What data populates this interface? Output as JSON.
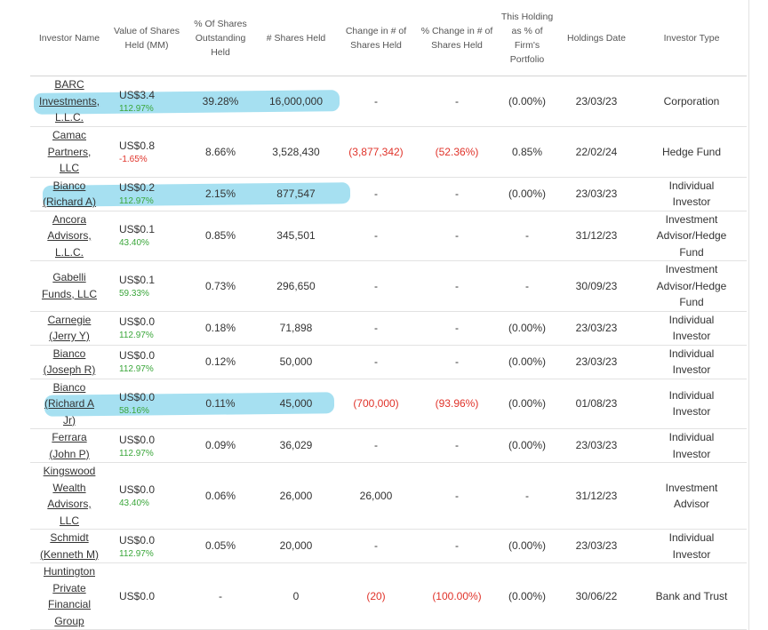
{
  "table": {
    "headers": [
      "Investor Name",
      "Value of Shares Held (MM)",
      "% Of Shares Outstanding Held",
      "# Shares Held",
      "Change in # of Shares Held",
      "% Change in # of Shares Held",
      "This Holding as % of Firm's Portfolio",
      "Holdings Date",
      "Investor Type"
    ],
    "rows": [
      {
        "name": "BARC Investments, L.L.C.",
        "value": "US$3.4",
        "value_change": "112.97%",
        "value_change_dir": "pos",
        "pct_outstanding": "39.28%",
        "shares": "16,000,000",
        "change_shares": "-",
        "change_shares_neg": false,
        "pct_change": "-",
        "pct_change_neg": false,
        "portfolio": "(0.00%)",
        "date": "23/03/23",
        "type": "Corporation",
        "highlighted": true
      },
      {
        "name": "Camac Partners, LLC",
        "value": "US$0.8",
        "value_change": "-1.65%",
        "value_change_dir": "neg",
        "pct_outstanding": "8.66%",
        "shares": "3,528,430",
        "change_shares": "(3,877,342)",
        "change_shares_neg": true,
        "pct_change": "(52.36%)",
        "pct_change_neg": true,
        "portfolio": "0.85%",
        "date": "22/02/24",
        "type": "Hedge Fund",
        "highlighted": false
      },
      {
        "name": "Bianco (Richard A)",
        "value": "US$0.2",
        "value_change": "112.97%",
        "value_change_dir": "pos",
        "pct_outstanding": "2.15%",
        "shares": "877,547",
        "change_shares": "-",
        "change_shares_neg": false,
        "pct_change": "-",
        "pct_change_neg": false,
        "portfolio": "(0.00%)",
        "date": "23/03/23",
        "type": "Individual Investor",
        "highlighted": true
      },
      {
        "name": "Ancora Advisors, L.L.C.",
        "value": "US$0.1",
        "value_change": "43.40%",
        "value_change_dir": "pos",
        "pct_outstanding": "0.85%",
        "shares": "345,501",
        "change_shares": "-",
        "change_shares_neg": false,
        "pct_change": "-",
        "pct_change_neg": false,
        "portfolio": "-",
        "date": "31/12/23",
        "type": "Investment Advisor/Hedge Fund",
        "highlighted": false
      },
      {
        "name": "Gabelli Funds, LLC",
        "value": "US$0.1",
        "value_change": "59.33%",
        "value_change_dir": "pos",
        "pct_outstanding": "0.73%",
        "shares": "296,650",
        "change_shares": "-",
        "change_shares_neg": false,
        "pct_change": "-",
        "pct_change_neg": false,
        "portfolio": "-",
        "date": "30/09/23",
        "type": "Investment Advisor/Hedge Fund",
        "highlighted": false
      },
      {
        "name": "Carnegie (Jerry Y)",
        "value": "US$0.0",
        "value_change": "112.97%",
        "value_change_dir": "pos",
        "pct_outstanding": "0.18%",
        "shares": "71,898",
        "change_shares": "-",
        "change_shares_neg": false,
        "pct_change": "-",
        "pct_change_neg": false,
        "portfolio": "(0.00%)",
        "date": "23/03/23",
        "type": "Individual Investor",
        "highlighted": false
      },
      {
        "name": "Bianco (Joseph R)",
        "value": "US$0.0",
        "value_change": "112.97%",
        "value_change_dir": "pos",
        "pct_outstanding": "0.12%",
        "shares": "50,000",
        "change_shares": "-",
        "change_shares_neg": false,
        "pct_change": "-",
        "pct_change_neg": false,
        "portfolio": "(0.00%)",
        "date": "23/03/23",
        "type": "Individual Investor",
        "highlighted": false
      },
      {
        "name": "Bianco (Richard A Jr)",
        "value": "US$0.0",
        "value_change": "58.16%",
        "value_change_dir": "pos",
        "pct_outstanding": "0.11%",
        "shares": "45,000",
        "change_shares": "(700,000)",
        "change_shares_neg": true,
        "pct_change": "(93.96%)",
        "pct_change_neg": true,
        "portfolio": "(0.00%)",
        "date": "01/08/23",
        "type": "Individual Investor",
        "highlighted": true
      },
      {
        "name": "Ferrara (John P)",
        "value": "US$0.0",
        "value_change": "112.97%",
        "value_change_dir": "pos",
        "pct_outstanding": "0.09%",
        "shares": "36,029",
        "change_shares": "-",
        "change_shares_neg": false,
        "pct_change": "-",
        "pct_change_neg": false,
        "portfolio": "(0.00%)",
        "date": "23/03/23",
        "type": "Individual Investor",
        "highlighted": false
      },
      {
        "name": "Kingswood Wealth Advisors, LLC",
        "value": "US$0.0",
        "value_change": "43.40%",
        "value_change_dir": "pos",
        "pct_outstanding": "0.06%",
        "shares": "26,000",
        "change_shares": "26,000",
        "change_shares_neg": false,
        "pct_change": "-",
        "pct_change_neg": false,
        "portfolio": "-",
        "date": "31/12/23",
        "type": "Investment Advisor",
        "highlighted": false
      },
      {
        "name": "Schmidt (Kenneth M)",
        "value": "US$0.0",
        "value_change": "112.97%",
        "value_change_dir": "pos",
        "pct_outstanding": "0.05%",
        "shares": "20,000",
        "change_shares": "-",
        "change_shares_neg": false,
        "pct_change": "-",
        "pct_change_neg": false,
        "portfolio": "(0.00%)",
        "date": "23/03/23",
        "type": "Individual Investor",
        "highlighted": false
      },
      {
        "name": "Huntington Private Financial Group",
        "value": "US$0.0",
        "value_change": "",
        "value_change_dir": "none",
        "pct_outstanding": "-",
        "shares": "0",
        "change_shares": "(20)",
        "change_shares_neg": true,
        "pct_change": "(100.00%)",
        "pct_change_neg": true,
        "portfolio": "(0.00%)",
        "date": "30/06/22",
        "type": "Bank and Trust",
        "highlighted": false
      }
    ]
  },
  "colors": {
    "positive": "#3aa63a",
    "negative": "#e0332a",
    "highlight": "#88d6ec"
  }
}
